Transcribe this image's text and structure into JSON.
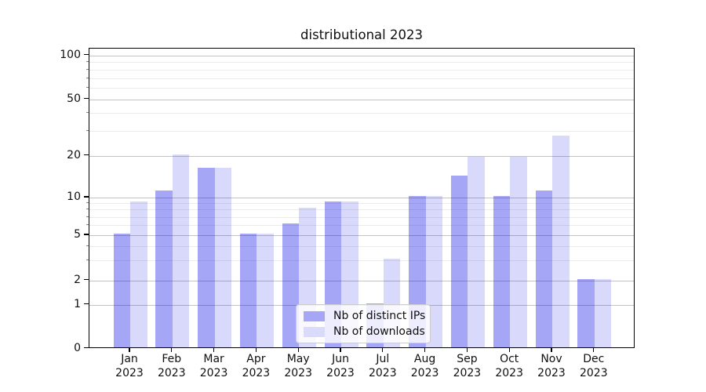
{
  "title": "distributional 2023",
  "chart_data": {
    "type": "bar",
    "title": "distributional 2023",
    "categories": [
      "Jan 2023",
      "Feb 2023",
      "Mar 2023",
      "Apr 2023",
      "May 2023",
      "Jun 2023",
      "Jul 2023",
      "Aug 2023",
      "Sep 2023",
      "Oct 2023",
      "Nov 2023",
      "Dec 2023"
    ],
    "series": [
      {
        "name": "Nb of distinct IPs",
        "color": "#a6a6f7",
        "fill": "rgba(0,0,230,0.35)",
        "values": [
          5,
          11,
          16,
          5,
          6,
          9,
          1,
          10,
          14,
          10,
          11,
          2
        ]
      },
      {
        "name": "Nb of downloads",
        "color": "#dadafb",
        "fill": "rgba(0,0,230,0.15)",
        "values": [
          9,
          20,
          16,
          5,
          8,
          9,
          3,
          10,
          19,
          19,
          27,
          2
        ]
      }
    ],
    "xlabel": "",
    "ylabel": "",
    "yscale": "asinh",
    "ylim": [
      0,
      112
    ],
    "y_major_ticks": [
      0,
      1,
      2,
      5,
      10,
      20,
      50,
      100
    ],
    "y_minor_ticks": [
      3,
      4,
      6,
      7,
      8,
      9,
      30,
      40,
      60,
      70,
      80,
      90
    ],
    "grid": {
      "horizontal_major": true,
      "horizontal_minor": true,
      "vertical": false
    },
    "legend_position": "lower center"
  },
  "colors": {
    "grid_major": "#c3c3c3",
    "grid_minor": "#ebebeb",
    "spine": "#000000",
    "background": "#ffffff",
    "text": "#0f0f0f"
  }
}
